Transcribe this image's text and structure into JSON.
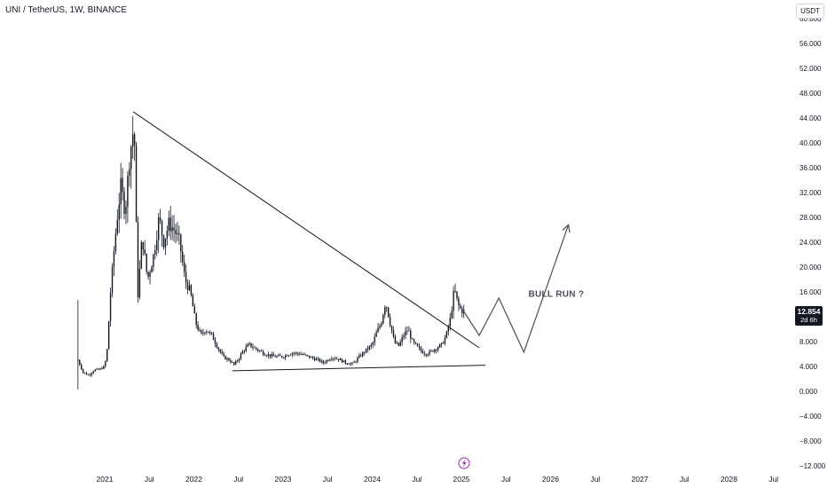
{
  "header": {
    "symbol_title": "UNI / TetherUS, 1W, BINANCE",
    "currency": "USDT"
  },
  "price_badge": {
    "last": "12.854",
    "countdown": "2d 6h"
  },
  "colors": {
    "candles": "#131722",
    "axis_text": "#131722",
    "event_icon": "#9c27b0",
    "price_badge_bg": "#131722"
  },
  "event_icon": "lightning-icon",
  "chart_data": {
    "type": "candlestick",
    "title": "",
    "xlabel": "",
    "ylabel": "",
    "ylim": [
      -12,
      60
    ],
    "y_ticks": [
      "60.000",
      "56.000",
      "52.000",
      "48.000",
      "44.000",
      "40.000",
      "36.000",
      "32.000",
      "28.000",
      "24.000",
      "20.000",
      "16.000",
      "12.000",
      "8.000",
      "4.000",
      "0.000",
      "−4.000",
      "−8.000",
      "−12.000"
    ],
    "x_ticks": [
      {
        "label": "2021",
        "t": 2021.0
      },
      {
        "label": "Jul",
        "t": 2021.5
      },
      {
        "label": "2022",
        "t": 2022.0
      },
      {
        "label": "Jul",
        "t": 2022.5
      },
      {
        "label": "2023",
        "t": 2023.0
      },
      {
        "label": "Jul",
        "t": 2023.5
      },
      {
        "label": "2024",
        "t": 2024.0
      },
      {
        "label": "Jul",
        "t": 2024.5
      },
      {
        "label": "2025",
        "t": 2025.0
      },
      {
        "label": "Jul",
        "t": 2025.5
      },
      {
        "label": "2026",
        "t": 2026.0
      },
      {
        "label": "Jul",
        "t": 2026.5
      },
      {
        "label": "2027",
        "t": 2027.0
      },
      {
        "label": "Jul",
        "t": 2027.5
      },
      {
        "label": "2028",
        "t": 2028.0
      },
      {
        "label": "Jul",
        "t": 2028.5
      }
    ],
    "price_path": [
      [
        2020.7,
        5.0
      ],
      [
        2020.76,
        3.0
      ],
      [
        2020.82,
        2.6
      ],
      [
        2020.88,
        3.4
      ],
      [
        2020.94,
        3.5
      ],
      [
        2021.0,
        4.0
      ],
      [
        2021.03,
        7.0
      ],
      [
        2021.06,
        15.0
      ],
      [
        2021.1,
        22.0
      ],
      [
        2021.14,
        28.0
      ],
      [
        2021.18,
        33.0
      ],
      [
        2021.23,
        29.0
      ],
      [
        2021.28,
        38.0
      ],
      [
        2021.33,
        43.0
      ],
      [
        2021.37,
        15.0
      ],
      [
        2021.42,
        25.0
      ],
      [
        2021.48,
        18.0
      ],
      [
        2021.55,
        22.0
      ],
      [
        2021.61,
        28.0
      ],
      [
        2021.66,
        24.0
      ],
      [
        2021.72,
        27.0
      ],
      [
        2021.78,
        26.0
      ],
      [
        2021.84,
        24.0
      ],
      [
        2021.9,
        18.0
      ],
      [
        2021.96,
        16.0
      ],
      [
        2022.02,
        11.0
      ],
      [
        2022.08,
        9.0
      ],
      [
        2022.13,
        10.0
      ],
      [
        2022.2,
        9.0
      ],
      [
        2022.27,
        7.0
      ],
      [
        2022.33,
        5.5
      ],
      [
        2022.4,
        5.0
      ],
      [
        2022.45,
        4.3
      ],
      [
        2022.5,
        5.2
      ],
      [
        2022.55,
        6.5
      ],
      [
        2022.62,
        7.5
      ],
      [
        2022.7,
        6.8
      ],
      [
        2022.8,
        6.0
      ],
      [
        2022.9,
        5.6
      ],
      [
        2023.0,
        5.6
      ],
      [
        2023.1,
        6.2
      ],
      [
        2023.2,
        6.0
      ],
      [
        2023.3,
        5.5
      ],
      [
        2023.4,
        5.0
      ],
      [
        2023.45,
        4.6
      ],
      [
        2023.55,
        5.5
      ],
      [
        2023.62,
        5.2
      ],
      [
        2023.7,
        4.6
      ],
      [
        2023.78,
        4.4
      ],
      [
        2023.85,
        5.5
      ],
      [
        2023.92,
        6.5
      ],
      [
        2024.0,
        7.5
      ],
      [
        2024.05,
        9.5
      ],
      [
        2024.1,
        11.0
      ],
      [
        2024.15,
        14.5
      ],
      [
        2024.2,
        11.0
      ],
      [
        2024.25,
        7.8
      ],
      [
        2024.3,
        7.3
      ],
      [
        2024.35,
        9.0
      ],
      [
        2024.4,
        10.0
      ],
      [
        2024.45,
        8.0
      ],
      [
        2024.5,
        7.2
      ],
      [
        2024.55,
        6.5
      ],
      [
        2024.6,
        6.0
      ],
      [
        2024.65,
        6.3
      ],
      [
        2024.72,
        7.0
      ],
      [
        2024.78,
        7.5
      ],
      [
        2024.83,
        9.0
      ],
      [
        2024.88,
        12.0
      ],
      [
        2024.92,
        16.5
      ],
      [
        2024.96,
        14.0
      ],
      [
        2025.0,
        13.0
      ],
      [
        2025.04,
        12.854
      ]
    ],
    "triangle": {
      "upper_trendline": [
        [
          2021.32,
          45.0
        ],
        [
          2025.2,
          7.0
        ]
      ],
      "lower_trendline": [
        [
          2022.43,
          3.3
        ],
        [
          2025.27,
          4.2
        ]
      ]
    },
    "projection_path": [
      [
        2025.02,
        13.0
      ],
      [
        2025.2,
        9.0
      ],
      [
        2025.42,
        15.0
      ],
      [
        2025.7,
        6.3
      ],
      [
        2026.2,
        26.8
      ]
    ],
    "annotations": [
      {
        "text": "BULL RUN ?",
        "t": 2025.98,
        "y": 15.2
      }
    ]
  }
}
